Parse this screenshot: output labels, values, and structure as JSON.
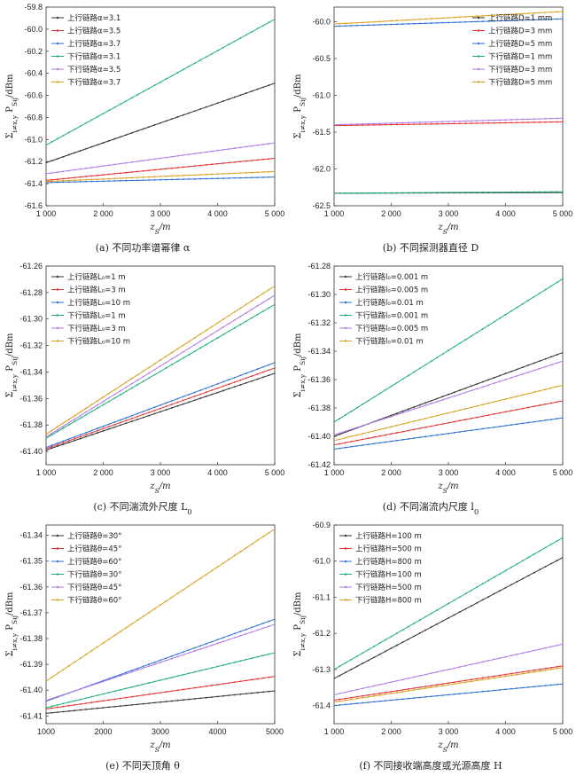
{
  "chart_data": [
    {
      "type": "line",
      "caption": "(a) 不同功率谱幂律 α",
      "xlabel": "z_S/m",
      "ylabel": "Σ_{i≠x,y} P_{Sij}/dBm",
      "xlim": [
        1000,
        5000
      ],
      "ylim": [
        -61.6,
        -59.8
      ],
      "xticks": [
        1000,
        2000,
        3000,
        4000,
        5000
      ],
      "xtick_labels": [
        "1 000",
        "2 000",
        "3 000",
        "4 000",
        "5 000"
      ],
      "yticks": [
        -61.6,
        -61.4,
        -61.2,
        -61.0,
        -60.8,
        -60.6,
        -60.4,
        -60.2,
        -60.0,
        -59.8
      ],
      "ytick_labels": [
        "-61.6",
        "-61.4",
        "-61.2",
        "-61.0",
        "-60.8",
        "-60.6",
        "-60.4",
        "-60.2",
        "-60.0",
        "-59.8"
      ],
      "legend_position": "top-left",
      "series": [
        {
          "name": "上行链路α=3.1",
          "color": "#333333",
          "x": [
            1000,
            5000
          ],
          "y": [
            -61.21,
            -60.49
          ]
        },
        {
          "name": "上行链路α=3.5",
          "color": "#e03030",
          "x": [
            1000,
            5000
          ],
          "y": [
            -61.37,
            -61.17
          ]
        },
        {
          "name": "上行链路α=3.7",
          "color": "#2b6fd1",
          "x": [
            1000,
            5000
          ],
          "y": [
            -61.39,
            -61.34
          ]
        },
        {
          "name": "下行链路α=3.1",
          "color": "#1fae7a",
          "x": [
            1000,
            5000
          ],
          "y": [
            -61.05,
            -59.91
          ]
        },
        {
          "name": "下行链路α=3.5",
          "color": "#b07ae6",
          "x": [
            1000,
            5000
          ],
          "y": [
            -61.31,
            -61.03
          ]
        },
        {
          "name": "下行链路α=3.7",
          "color": "#d9a020",
          "x": [
            1000,
            5000
          ],
          "y": [
            -61.38,
            -61.29
          ]
        }
      ]
    },
    {
      "type": "line",
      "caption": "(b) 不同探测器直径 D",
      "xlabel": "z_S/m",
      "ylabel": "Σ_{i≠x,y} P_{Sij}/dBm",
      "xlim": [
        1000,
        5000
      ],
      "ylim": [
        -62.5,
        -59.8
      ],
      "xticks": [
        1000,
        2000,
        3000,
        4000,
        5000
      ],
      "xtick_labels": [
        "1 000",
        "2 000",
        "3 000",
        "4 000",
        "5 000"
      ],
      "yticks": [
        -62.5,
        -62.0,
        -61.5,
        -61.0,
        -60.5,
        -60.0
      ],
      "ytick_labels": [
        "-62.5",
        "-62.0",
        "-61.5",
        "-61.0",
        "-60.5",
        "-60.0"
      ],
      "legend_position": "top-right",
      "series": [
        {
          "name": "上行链路D=1 mm",
          "color": "#333333",
          "x": [
            1000,
            5000
          ],
          "y": [
            -62.33,
            -62.32
          ]
        },
        {
          "name": "上行链路D=3 mm",
          "color": "#e03030",
          "x": [
            1000,
            5000
          ],
          "y": [
            -61.41,
            -61.36
          ]
        },
        {
          "name": "上行链路D=5 mm",
          "color": "#2b6fd1",
          "x": [
            1000,
            5000
          ],
          "y": [
            -60.06,
            -59.96
          ]
        },
        {
          "name": "下行链路D=1 mm",
          "color": "#1fae7a",
          "x": [
            1000,
            5000
          ],
          "y": [
            -62.33,
            -62.31
          ]
        },
        {
          "name": "下行链路D=3 mm",
          "color": "#b07ae6",
          "x": [
            1000,
            5000
          ],
          "y": [
            -61.4,
            -61.31
          ]
        },
        {
          "name": "下行链路D=5 mm",
          "color": "#d9a020",
          "x": [
            1000,
            5000
          ],
          "y": [
            -60.03,
            -59.86
          ]
        }
      ]
    },
    {
      "type": "line",
      "caption": "(c) 不同湍流外尺度 L_0",
      "xlabel": "z_S/m",
      "ylabel": "Σ_{i≠x,y} P_{Sij}/dBm",
      "xlim": [
        1000,
        5000
      ],
      "ylim": [
        -61.41,
        -61.26
      ],
      "xticks": [
        1000,
        2000,
        3000,
        4000,
        5000
      ],
      "xtick_labels": [
        "1 000",
        "2 000",
        "3 000",
        "4 000",
        "5 000"
      ],
      "yticks": [
        -61.4,
        -61.38,
        -61.36,
        -61.34,
        -61.32,
        -61.3,
        -61.28,
        -61.26
      ],
      "ytick_labels": [
        "-61.40",
        "-61.38",
        "-61.36",
        "-61.34",
        "-61.32",
        "-61.30",
        "-61.28",
        "-61.26"
      ],
      "legend_position": "top-left",
      "series": [
        {
          "name": "上行链路L₀=1 m",
          "color": "#333333",
          "x": [
            1000,
            5000
          ],
          "y": [
            -61.399,
            -61.341
          ]
        },
        {
          "name": "上行链路L₀=3 m",
          "color": "#e03030",
          "x": [
            1000,
            5000
          ],
          "y": [
            -61.398,
            -61.337
          ]
        },
        {
          "name": "上行链路L₀=10 m",
          "color": "#2b6fd1",
          "x": [
            1000,
            5000
          ],
          "y": [
            -61.397,
            -61.333
          ]
        },
        {
          "name": "下行链路L₀=1 m",
          "color": "#1fae7a",
          "x": [
            1000,
            5000
          ],
          "y": [
            -61.39,
            -61.289
          ]
        },
        {
          "name": "下行链路L₀=3 m",
          "color": "#b07ae6",
          "x": [
            1000,
            5000
          ],
          "y": [
            -61.389,
            -61.282
          ]
        },
        {
          "name": "下行链路L₀=10 m",
          "color": "#d9a020",
          "x": [
            1000,
            5000
          ],
          "y": [
            -61.387,
            -61.275
          ]
        }
      ]
    },
    {
      "type": "line",
      "caption": "(d) 不同湍流内尺度 l_0",
      "xlabel": "z_S/m",
      "ylabel": "Σ_{i≠x,y} P_{Sij}/dBm",
      "xlim": [
        1000,
        5000
      ],
      "ylim": [
        -61.42,
        -61.28
      ],
      "xticks": [
        1000,
        2000,
        3000,
        4000,
        5000
      ],
      "xtick_labels": [
        "1 000",
        "2 000",
        "3 000",
        "4 000",
        "5 000"
      ],
      "yticks": [
        -61.42,
        -61.4,
        -61.38,
        -61.36,
        -61.34,
        -61.32,
        -61.3,
        -61.28
      ],
      "ytick_labels": [
        "-61.42",
        "-61.40",
        "-61.38",
        "-61.36",
        "-61.34",
        "-61.32",
        "-61.30",
        "-61.28"
      ],
      "legend_position": "top-left",
      "series": [
        {
          "name": "上行链路l₀=0.001 m",
          "color": "#333333",
          "x": [
            1000,
            5000
          ],
          "y": [
            -61.4,
            -61.341
          ]
        },
        {
          "name": "上行链路l₀=0.005 m",
          "color": "#e03030",
          "x": [
            1000,
            5000
          ],
          "y": [
            -61.406,
            -61.375
          ]
        },
        {
          "name": "上行链路l₀=0.01 m",
          "color": "#2b6fd1",
          "x": [
            1000,
            5000
          ],
          "y": [
            -61.409,
            -61.387
          ]
        },
        {
          "name": "下行链路l₀=0.001 m",
          "color": "#1fae7a",
          "x": [
            1000,
            5000
          ],
          "y": [
            -61.39,
            -61.289
          ]
        },
        {
          "name": "下行链路l₀=0.005 m",
          "color": "#b07ae6",
          "x": [
            1000,
            5000
          ],
          "y": [
            -61.399,
            -61.347
          ]
        },
        {
          "name": "下行链路l₀=0.01 m",
          "color": "#d9a020",
          "x": [
            1000,
            5000
          ],
          "y": [
            -61.403,
            -61.364
          ]
        }
      ]
    },
    {
      "type": "line",
      "caption": "(e) 不同天顶角 θ",
      "xlabel": "z_S/m",
      "ylabel": "Σ_{i≠x,y} P_{Sij}/dBm",
      "xlim": [
        1000,
        5000
      ],
      "ylim": [
        -61.413,
        -61.336
      ],
      "xticks": [
        1000,
        2000,
        3000,
        4000,
        5000
      ],
      "xtick_labels": [
        "1000",
        "2000",
        "3000",
        "4000",
        "5000"
      ],
      "yticks": [
        -61.41,
        -61.4,
        -61.39,
        -61.38,
        -61.37,
        -61.36,
        -61.35,
        -61.34
      ],
      "ytick_labels": [
        "-61.41",
        "-61.40",
        "-61.39",
        "-61.38",
        "-61.37",
        "-61.36",
        "-61.35",
        "-61.34"
      ],
      "legend_position": "top-left",
      "series": [
        {
          "name": "上行链路θ=30°",
          "color": "#333333",
          "x": [
            1000,
            5000
          ],
          "y": [
            -61.409,
            -61.4003
          ]
        },
        {
          "name": "上行链路θ=45°",
          "color": "#e03030",
          "x": [
            1000,
            5000
          ],
          "y": [
            -61.4073,
            -61.3947
          ]
        },
        {
          "name": "上行链路θ=60°",
          "color": "#2b6fd1",
          "x": [
            1000,
            5000
          ],
          "y": [
            -61.4043,
            -61.3725
          ]
        },
        {
          "name": "下行链路θ=30°",
          "color": "#1fae7a",
          "x": [
            1000,
            5000
          ],
          "y": [
            -61.4068,
            -61.3855
          ]
        },
        {
          "name": "下行链路θ=45°",
          "color": "#b07ae6",
          "x": [
            1000,
            5000
          ],
          "y": [
            -61.404,
            -61.3745
          ]
        },
        {
          "name": "下行链路θ=60°",
          "color": "#d9a020",
          "x": [
            1000,
            5000
          ],
          "y": [
            -61.3965,
            -61.3375
          ]
        }
      ]
    },
    {
      "type": "line",
      "caption": "(f) 不同接收端高度或光源高度 H",
      "xlabel": "z_S/m",
      "ylabel": "Σ_{i≠x,y} P_{Sij}/dBm",
      "xlim": [
        1000,
        5000
      ],
      "ylim": [
        -61.45,
        -60.9
      ],
      "xticks": [
        1000,
        2000,
        3000,
        4000,
        5000
      ],
      "xtick_labels": [
        "1 000",
        "2 000",
        "3 000",
        "4 000",
        "5 000"
      ],
      "yticks": [
        -61.4,
        -61.3,
        -61.2,
        -61.1,
        -61.0,
        -60.9
      ],
      "ytick_labels": [
        "-61.4",
        "-61.3",
        "-61.2",
        "-61.1",
        "-61.0",
        "-60.9"
      ],
      "legend_position": "top-left",
      "series": [
        {
          "name": "上行链路H=100 m",
          "color": "#333333",
          "x": [
            1000,
            5000
          ],
          "y": [
            -61.325,
            -60.99
          ]
        },
        {
          "name": "上行链路H=500 m",
          "color": "#e03030",
          "x": [
            1000,
            5000
          ],
          "y": [
            -61.385,
            -61.29
          ]
        },
        {
          "name": "上行链路H=800 m",
          "color": "#2b6fd1",
          "x": [
            1000,
            5000
          ],
          "y": [
            -61.4,
            -61.34
          ]
        },
        {
          "name": "下行链路H=100 m",
          "color": "#1fae7a",
          "x": [
            1000,
            5000
          ],
          "y": [
            -61.3,
            -60.935
          ]
        },
        {
          "name": "下行链路H=500 m",
          "color": "#b07ae6",
          "x": [
            1000,
            5000
          ],
          "y": [
            -61.37,
            -61.23
          ]
        },
        {
          "name": "下行链路H=800 m",
          "color": "#d9a020",
          "x": [
            1000,
            5000
          ],
          "y": [
            -61.39,
            -61.295
          ]
        }
      ]
    }
  ]
}
